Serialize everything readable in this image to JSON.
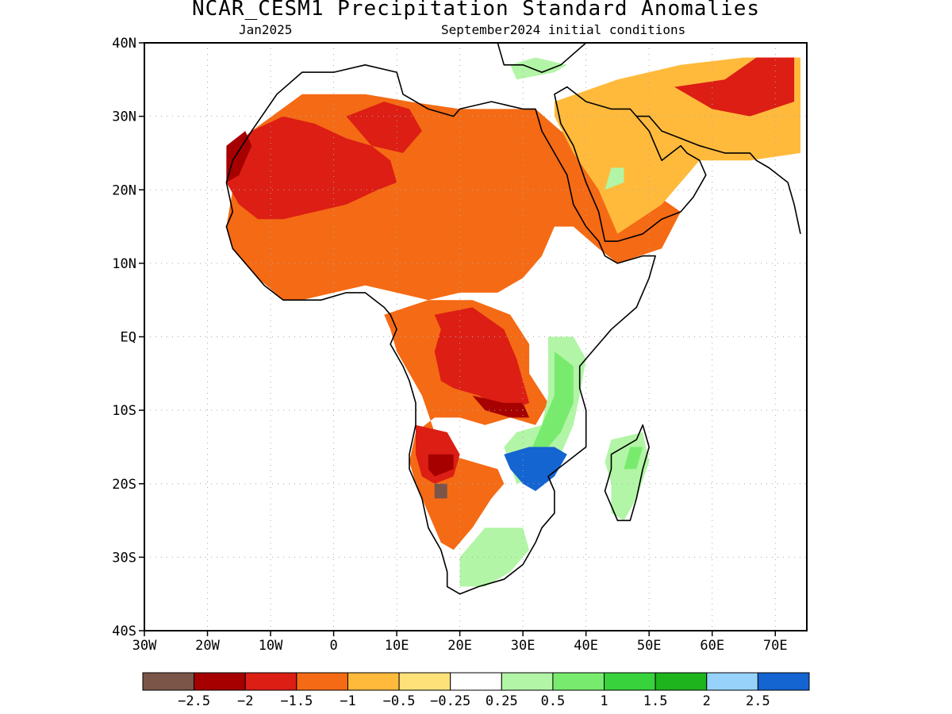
{
  "title": "NCAR_CESM1 Precipitation Standard Anomalies",
  "subtitle_left": "Jan2025",
  "subtitle_right": "September2024 initial conditions",
  "map": {
    "lon_range": [
      -30,
      75
    ],
    "lat_range": [
      -40,
      40
    ],
    "gridlines": "dotted",
    "y_ticks": [
      {
        "value": 40,
        "label": "40N"
      },
      {
        "value": 30,
        "label": "30N"
      },
      {
        "value": 20,
        "label": "20N"
      },
      {
        "value": 10,
        "label": "10N"
      },
      {
        "value": 0,
        "label": "EQ"
      },
      {
        "value": -10,
        "label": "10S"
      },
      {
        "value": -20,
        "label": "20S"
      },
      {
        "value": -30,
        "label": "30S"
      },
      {
        "value": -40,
        "label": "40S"
      }
    ],
    "x_ticks": [
      {
        "value": -30,
        "label": "30W"
      },
      {
        "value": -20,
        "label": "20W"
      },
      {
        "value": -10,
        "label": "10W"
      },
      {
        "value": 0,
        "label": "0"
      },
      {
        "value": 10,
        "label": "10E"
      },
      {
        "value": 20,
        "label": "20E"
      },
      {
        "value": 30,
        "label": "30E"
      },
      {
        "value": 40,
        "label": "40E"
      },
      {
        "value": 50,
        "label": "50E"
      },
      {
        "value": 60,
        "label": "60E"
      },
      {
        "value": 70,
        "label": "70E"
      }
    ]
  },
  "colorbar": {
    "colors": [
      "#7a5548",
      "#a60000",
      "#dc1e14",
      "#f56a14",
      "#ffba3c",
      "#ffe17a",
      "#ffffff",
      "#b2f5a6",
      "#78eb6e",
      "#37d23c",
      "#1eb41e",
      "#96d2fa",
      "#1464d2"
    ],
    "labels": [
      "-2.5",
      "-2",
      "-1.5",
      "-1",
      "-0.5",
      "-0.25",
      "0.25",
      "0.5",
      "1",
      "1.5",
      "2",
      "2.5"
    ]
  },
  "anomaly_regions": [
    {
      "level": -1,
      "points": [
        [
          -13,
          28
        ],
        [
          -5,
          33
        ],
        [
          5,
          33
        ],
        [
          12,
          32
        ],
        [
          20,
          31
        ],
        [
          32,
          31
        ],
        [
          36,
          28
        ],
        [
          40,
          26
        ],
        [
          44,
          22
        ],
        [
          50,
          20
        ],
        [
          55,
          17
        ],
        [
          52,
          12
        ],
        [
          45,
          10
        ],
        [
          42,
          12
        ],
        [
          38,
          15
        ],
        [
          35,
          15
        ],
        [
          33,
          11
        ],
        [
          30,
          8
        ],
        [
          26,
          6
        ],
        [
          20,
          6
        ],
        [
          15,
          5
        ],
        [
          10,
          6
        ],
        [
          5,
          7
        ],
        [
          0,
          6
        ],
        [
          -5,
          5
        ],
        [
          -8,
          5
        ],
        [
          -12,
          8
        ],
        [
          -16,
          12
        ],
        [
          -17,
          15
        ],
        [
          -16,
          20
        ]
      ]
    },
    {
      "level": -0.5,
      "points": [
        [
          35,
          32
        ],
        [
          45,
          35
        ],
        [
          55,
          37
        ],
        [
          65,
          38
        ],
        [
          74,
          38
        ],
        [
          74,
          25
        ],
        [
          66,
          24
        ],
        [
          58,
          24
        ],
        [
          52,
          18
        ],
        [
          45,
          14
        ],
        [
          42,
          20
        ],
        [
          38,
          25
        ],
        [
          35,
          30
        ]
      ]
    },
    {
      "level": -1.5,
      "points": [
        [
          -17,
          25
        ],
        [
          -13,
          28
        ],
        [
          -8,
          30
        ],
        [
          -3,
          29
        ],
        [
          2,
          27
        ],
        [
          6,
          26
        ],
        [
          9,
          24
        ],
        [
          10,
          21
        ],
        [
          7,
          20
        ],
        [
          2,
          18
        ],
        [
          -3,
          17
        ],
        [
          -8,
          16
        ],
        [
          -12,
          16
        ],
        [
          -15,
          18
        ],
        [
          -17,
          21
        ]
      ]
    },
    {
      "level": -1.5,
      "points": [
        [
          2,
          30
        ],
        [
          8,
          32
        ],
        [
          12,
          31
        ],
        [
          14,
          28
        ],
        [
          11,
          25
        ],
        [
          6,
          26
        ]
      ]
    },
    {
      "level": -2,
      "points": [
        [
          -17,
          26
        ],
        [
          -14,
          28
        ],
        [
          -13,
          26
        ],
        [
          -15,
          22
        ],
        [
          -17,
          21
        ]
      ]
    },
    {
      "level": -1.5,
      "points": [
        [
          54,
          34
        ],
        [
          62,
          35
        ],
        [
          67,
          38
        ],
        [
          73,
          38
        ],
        [
          73,
          32
        ],
        [
          66,
          30
        ],
        [
          60,
          31
        ]
      ]
    },
    {
      "level": -1,
      "points": [
        [
          8,
          3
        ],
        [
          15,
          5
        ],
        [
          22,
          5
        ],
        [
          28,
          3
        ],
        [
          31,
          -1
        ],
        [
          31,
          -5
        ],
        [
          34,
          -9
        ],
        [
          32,
          -12
        ],
        [
          28,
          -11
        ],
        [
          24,
          -12
        ],
        [
          20,
          -11
        ],
        [
          16,
          -11
        ],
        [
          13,
          -13
        ],
        [
          12,
          -17
        ],
        [
          13,
          -20
        ],
        [
          15,
          -24
        ],
        [
          17,
          -28
        ],
        [
          19,
          -29
        ],
        [
          22,
          -26
        ],
        [
          25,
          -22
        ],
        [
          27,
          -20
        ],
        [
          26,
          -18
        ],
        [
          22,
          -17
        ],
        [
          18,
          -16
        ],
        [
          16,
          -13
        ],
        [
          14,
          -8
        ],
        [
          12,
          -5
        ],
        [
          10,
          -2
        ],
        [
          9,
          1
        ]
      ]
    },
    {
      "level": -1.5,
      "points": [
        [
          16,
          3
        ],
        [
          22,
          4
        ],
        [
          27,
          1
        ],
        [
          29,
          -3
        ],
        [
          30,
          -6
        ],
        [
          31,
          -9
        ],
        [
          28,
          -10
        ],
        [
          25,
          -9
        ],
        [
          23,
          -8
        ],
        [
          19,
          -7
        ],
        [
          17,
          -6
        ],
        [
          16,
          -2
        ],
        [
          17,
          1
        ]
      ]
    },
    {
      "level": -1.5,
      "points": [
        [
          13,
          -12
        ],
        [
          18,
          -13
        ],
        [
          20,
          -16
        ],
        [
          19,
          -19
        ],
        [
          16,
          -20
        ],
        [
          14,
          -19
        ],
        [
          13,
          -16
        ]
      ]
    },
    {
      "level": -2,
      "points": [
        [
          22,
          -8
        ],
        [
          27,
          -9
        ],
        [
          30,
          -9
        ],
        [
          31,
          -11
        ],
        [
          28,
          -11
        ],
        [
          24,
          -10
        ]
      ]
    },
    {
      "level": -2,
      "points": [
        [
          15,
          -16
        ],
        [
          19,
          -16
        ],
        [
          19,
          -18
        ],
        [
          16,
          -19
        ],
        [
          15,
          -18
        ]
      ]
    },
    {
      "level": -2.5,
      "points": [
        [
          16,
          -20
        ],
        [
          18,
          -20
        ],
        [
          18,
          -22
        ],
        [
          16,
          -22
        ]
      ]
    },
    {
      "level": 0.5,
      "points": [
        [
          34,
          0
        ],
        [
          38,
          0
        ],
        [
          40,
          -3
        ],
        [
          39,
          -8
        ],
        [
          38,
          -12
        ],
        [
          36,
          -16
        ],
        [
          33,
          -19
        ],
        [
          29,
          -20
        ],
        [
          27,
          -15
        ],
        [
          29,
          -13
        ],
        [
          33,
          -12
        ],
        [
          34,
          -8
        ],
        [
          34,
          -4
        ]
      ]
    },
    {
      "level": 1,
      "points": [
        [
          35,
          -2
        ],
        [
          38,
          -4
        ],
        [
          38,
          -9
        ],
        [
          36,
          -13
        ],
        [
          33,
          -16
        ],
        [
          31,
          -16
        ],
        [
          33,
          -12
        ],
        [
          35,
          -8
        ]
      ]
    },
    {
      "level": 2.5,
      "points": [
        [
          27,
          -16
        ],
        [
          31,
          -15
        ],
        [
          35,
          -15
        ],
        [
          37,
          -16
        ],
        [
          35,
          -19
        ],
        [
          32,
          -21
        ],
        [
          30,
          -20
        ],
        [
          28,
          -18
        ]
      ]
    },
    {
      "level": 0.5,
      "points": [
        [
          44,
          -14
        ],
        [
          49,
          -13
        ],
        [
          50,
          -17
        ],
        [
          48,
          -22
        ],
        [
          46,
          -25
        ],
        [
          44,
          -24
        ],
        [
          44,
          -20
        ],
        [
          43,
          -17
        ]
      ]
    },
    {
      "level": 1,
      "points": [
        [
          47,
          -15
        ],
        [
          49,
          -15
        ],
        [
          48,
          -18
        ],
        [
          46,
          -18
        ]
      ]
    },
    {
      "level": 0.5,
      "points": [
        [
          24,
          -26
        ],
        [
          30,
          -26
        ],
        [
          31,
          -29
        ],
        [
          28,
          -32
        ],
        [
          24,
          -34
        ],
        [
          20,
          -34
        ],
        [
          20,
          -30
        ]
      ]
    },
    {
      "level": 0.5,
      "points": [
        [
          43,
          20
        ],
        [
          46,
          21
        ],
        [
          46,
          23
        ],
        [
          44,
          23
        ]
      ]
    },
    {
      "level": 0.5,
      "points": [
        [
          29,
          35
        ],
        [
          35,
          36
        ],
        [
          37,
          37
        ],
        [
          32,
          38
        ],
        [
          28,
          37
        ]
      ]
    }
  ],
  "coastline": [
    [
      -5,
      36
    ],
    [
      -9,
      33
    ],
    [
      -13,
      28
    ],
    [
      -16,
      24
    ],
    [
      -17,
      21
    ],
    [
      -16,
      17
    ],
    [
      -17,
      15
    ],
    [
      -16,
      12
    ],
    [
      -13,
      9
    ],
    [
      -11,
      7
    ],
    [
      -8,
      5
    ],
    [
      -5,
      5
    ],
    [
      -2,
      5
    ],
    [
      2,
      6
    ],
    [
      5,
      6
    ],
    [
      8,
      4
    ],
    [
      9,
      3
    ],
    [
      10,
      1
    ],
    [
      9,
      -1
    ],
    [
      11,
      -4
    ],
    [
      12,
      -6
    ],
    [
      13,
      -9
    ],
    [
      13,
      -12
    ],
    [
      12,
      -16
    ],
    [
      12,
      -18
    ],
    [
      14,
      -22
    ],
    [
      15,
      -26
    ],
    [
      17,
      -29
    ],
    [
      18,
      -32
    ],
    [
      18,
      -34
    ],
    [
      20,
      -35
    ],
    [
      23,
      -34
    ],
    [
      27,
      -33
    ],
    [
      30,
      -31
    ],
    [
      32,
      -28
    ],
    [
      33,
      -26
    ],
    [
      35,
      -24
    ],
    [
      35,
      -21
    ],
    [
      34,
      -19
    ],
    [
      37,
      -17
    ],
    [
      40,
      -15
    ],
    [
      40,
      -10
    ],
    [
      39,
      -7
    ],
    [
      39,
      -4
    ],
    [
      41,
      -2
    ],
    [
      44,
      1
    ],
    [
      48,
      4
    ],
    [
      50,
      8
    ],
    [
      51,
      11
    ],
    [
      49,
      11
    ],
    [
      45,
      10
    ],
    [
      43,
      11
    ],
    [
      42,
      13
    ],
    [
      40,
      15
    ],
    [
      38,
      18
    ],
    [
      37,
      22
    ],
    [
      35,
      25
    ],
    [
      33,
      28
    ],
    [
      32,
      31
    ],
    [
      30,
      31
    ],
    [
      25,
      32
    ],
    [
      20,
      31
    ],
    [
      19,
      30
    ],
    [
      15,
      31
    ],
    [
      11,
      33
    ],
    [
      10,
      36
    ],
    [
      5,
      37
    ],
    [
      0,
      36
    ],
    [
      -5,
      36
    ]
  ],
  "madagascar": [
    [
      49,
      -12
    ],
    [
      50,
      -15
    ],
    [
      49,
      -18
    ],
    [
      48,
      -22
    ],
    [
      47,
      -25
    ],
    [
      45,
      -25
    ],
    [
      44,
      -23
    ],
    [
      43,
      -21
    ],
    [
      44,
      -18
    ],
    [
      44,
      -16
    ],
    [
      46,
      -15
    ],
    [
      48,
      -14
    ]
  ],
  "arabia": [
    [
      35,
      33
    ],
    [
      36,
      29
    ],
    [
      38,
      26
    ],
    [
      40,
      21
    ],
    [
      42,
      17
    ],
    [
      43,
      13
    ],
    [
      45,
      13
    ],
    [
      49,
      14
    ],
    [
      52,
      16
    ],
    [
      55,
      17
    ],
    [
      57,
      19
    ],
    [
      59,
      22
    ],
    [
      58,
      24
    ],
    [
      56,
      25
    ],
    [
      55,
      26
    ],
    [
      52,
      24
    ],
    [
      51,
      26
    ],
    [
      50,
      28
    ],
    [
      48,
      30
    ],
    [
      47,
      31
    ],
    [
      44,
      31
    ],
    [
      40,
      32
    ],
    [
      37,
      34
    ]
  ],
  "mideast_coast": [
    [
      48,
      30
    ],
    [
      50,
      30
    ],
    [
      52,
      28
    ],
    [
      55,
      27
    ],
    [
      58,
      26
    ],
    [
      62,
      25
    ],
    [
      66,
      25
    ],
    [
      67,
      24
    ],
    [
      69,
      23
    ],
    [
      72,
      21
    ],
    [
      73,
      18
    ],
    [
      74,
      14
    ]
  ],
  "north_coast": [
    [
      26,
      40
    ],
    [
      27,
      37
    ],
    [
      30,
      37
    ],
    [
      33,
      36
    ],
    [
      36,
      37
    ],
    [
      40,
      40
    ]
  ]
}
